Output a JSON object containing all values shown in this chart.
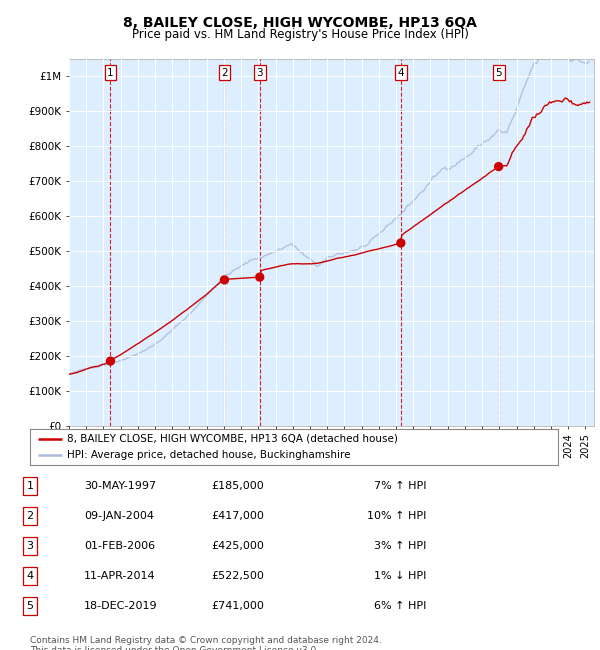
{
  "title": "8, BAILEY CLOSE, HIGH WYCOMBE, HP13 6QA",
  "subtitle": "Price paid vs. HM Land Registry's House Price Index (HPI)",
  "sale_dates": [
    "1997-05-30",
    "2004-01-09",
    "2006-02-01",
    "2014-04-11",
    "2019-12-18"
  ],
  "sale_prices": [
    185000,
    417000,
    425000,
    522500,
    741000
  ],
  "sale_labels": [
    "1",
    "2",
    "3",
    "4",
    "5"
  ],
  "sale_info": [
    "30-MAY-1997",
    "09-JAN-2004",
    "01-FEB-2006",
    "11-APR-2014",
    "18-DEC-2019"
  ],
  "sale_amounts": [
    "£185,000",
    "£417,000",
    "£425,000",
    "£522,500",
    "£741,000"
  ],
  "sale_hpi": [
    "7% ↑ HPI",
    "10% ↑ HPI",
    "3% ↑ HPI",
    "1% ↓ HPI",
    "6% ↑ HPI"
  ],
  "line_color_red": "#cc0000",
  "line_color_blue": "#aabbdd",
  "dot_color": "#cc0000",
  "vline_color": "#cc0000",
  "bg_color": "#ddeeff",
  "grid_color": "#ffffff",
  "legend_label_red": "8, BAILEY CLOSE, HIGH WYCOMBE, HP13 6QA (detached house)",
  "legend_label_blue": "HPI: Average price, detached house, Buckinghamshire",
  "ylabel_values": [
    0,
    100000,
    200000,
    300000,
    400000,
    500000,
    600000,
    700000,
    800000,
    900000,
    1000000
  ],
  "ylabel_labels": [
    "£0",
    "£100K",
    "£200K",
    "£300K",
    "£400K",
    "£500K",
    "£600K",
    "£700K",
    "£800K",
    "£900K",
    "£1M"
  ],
  "xmin": 1995.0,
  "xmax": 2025.5,
  "ymin": 0,
  "ymax": 1050000,
  "footnote": "Contains HM Land Registry data © Crown copyright and database right 2024.\nThis data is licensed under the Open Government Licence v3.0.",
  "sale_years_float": [
    1997.41,
    2004.03,
    2006.08,
    2014.28,
    2019.96
  ]
}
